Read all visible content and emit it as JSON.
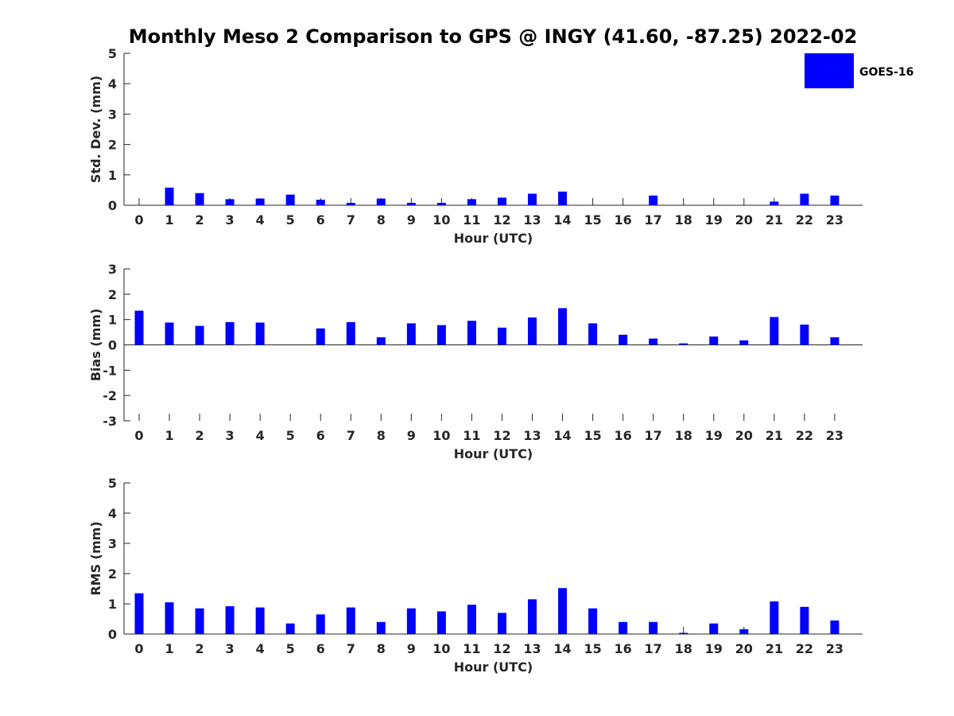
{
  "figure_title": "Monthly Meso 2 Comparison to GPS @ INGY (41.60, -87.25) 2022-02",
  "legend": {
    "label": "GOES-16",
    "placement": "top-right"
  },
  "colors": {
    "bar": "#0000ff",
    "axis": "#262626",
    "background": "#ffffff"
  },
  "chart_data": [
    {
      "type": "bar",
      "title": "",
      "xlabel": "Hour (UTC)",
      "ylabel": "Std. Dev. (mm)",
      "ylim": [
        0,
        5
      ],
      "yticks": [
        0,
        1,
        2,
        3,
        4,
        5
      ],
      "categories": [
        "0",
        "1",
        "2",
        "3",
        "4",
        "5",
        "6",
        "7",
        "8",
        "9",
        "10",
        "11",
        "12",
        "13",
        "14",
        "15",
        "16",
        "17",
        "18",
        "19",
        "20",
        "21",
        "22",
        "23"
      ],
      "series": [
        {
          "name": "GOES-16",
          "values": [
            0,
            0.58,
            0.4,
            0.2,
            0.22,
            0.35,
            0.18,
            0.08,
            0.22,
            0.08,
            0.08,
            0.2,
            0.25,
            0.38,
            0.45,
            0,
            0,
            0.32,
            0,
            0,
            0,
            0.12,
            0.38,
            0.32
          ]
        }
      ]
    },
    {
      "type": "bar",
      "title": "",
      "xlabel": "Hour (UTC)",
      "ylabel": "Bias (mm)",
      "ylim": [
        -3,
        3
      ],
      "yticks": [
        -3,
        -2,
        -1,
        0,
        1,
        2,
        3
      ],
      "categories": [
        "0",
        "1",
        "2",
        "3",
        "4",
        "5",
        "6",
        "7",
        "8",
        "9",
        "10",
        "11",
        "12",
        "13",
        "14",
        "15",
        "16",
        "17",
        "18",
        "19",
        "20",
        "21",
        "22",
        "23"
      ],
      "series": [
        {
          "name": "GOES-16",
          "values": [
            1.35,
            0.88,
            0.75,
            0.9,
            0.88,
            0,
            0.65,
            0.9,
            0.3,
            0.85,
            0.78,
            0.95,
            0.68,
            1.08,
            1.45,
            0.85,
            0.4,
            0.25,
            0.06,
            0.33,
            0.18,
            1.1,
            0.8,
            0.3
          ]
        }
      ]
    },
    {
      "type": "bar",
      "title": "",
      "xlabel": "Hour (UTC)",
      "ylabel": "RMS (mm)",
      "ylim": [
        0,
        5
      ],
      "yticks": [
        0,
        1,
        2,
        3,
        4,
        5
      ],
      "categories": [
        "0",
        "1",
        "2",
        "3",
        "4",
        "5",
        "6",
        "7",
        "8",
        "9",
        "10",
        "11",
        "12",
        "13",
        "14",
        "15",
        "16",
        "17",
        "18",
        "19",
        "20",
        "21",
        "22",
        "23"
      ],
      "series": [
        {
          "name": "GOES-16",
          "values": [
            1.35,
            1.05,
            0.85,
            0.92,
            0.88,
            0.35,
            0.65,
            0.88,
            0.4,
            0.85,
            0.75,
            0.97,
            0.7,
            1.15,
            1.52,
            0.85,
            0.4,
            0.4,
            0.04,
            0.35,
            0.16,
            1.08,
            0.9,
            0.45
          ]
        }
      ]
    }
  ]
}
